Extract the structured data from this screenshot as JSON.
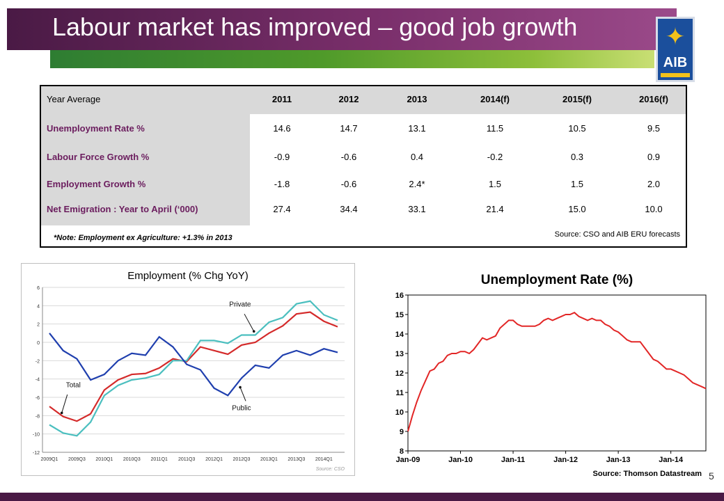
{
  "slide": {
    "title": "Labour market has improved – good job growth",
    "logo_text": "AIB",
    "page_number": "5"
  },
  "table": {
    "header_label": "Year Average",
    "years": [
      "2011",
      "2012",
      "2013",
      "2014(f)",
      "2015(f)",
      "2016(f)"
    ],
    "rows": [
      {
        "label": "Unemployment Rate %",
        "values": [
          "14.6",
          "14.7",
          "13.1",
          "11.5",
          "10.5",
          "9.5"
        ]
      },
      {
        "label": "Labour Force Growth %",
        "values": [
          "-0.9",
          "-0.6",
          "0.4",
          "-0.2",
          "0.3",
          "0.9"
        ]
      },
      {
        "label": "Employment Growth %",
        "values": [
          "-1.8",
          "-0.6",
          "2.4*",
          "1.5",
          "1.5",
          "2.0"
        ]
      },
      {
        "label": "Net Emigration : Year to April (‘000)",
        "values": [
          "27.4",
          "34.4",
          "33.1",
          "21.4",
          "15.0",
          "10.0"
        ]
      }
    ],
    "note": "*Note: Employment ex Agriculture: +1.3% in 2013",
    "source": "Source: CSO and AIB ERU forecasts"
  },
  "chart_data": [
    {
      "type": "line",
      "title": "Employment (% Chg YoY)",
      "x": [
        "2009Q1",
        "2009Q2",
        "2009Q3",
        "2009Q4",
        "2010Q1",
        "2010Q2",
        "2010Q3",
        "2010Q4",
        "2011Q1",
        "2011Q2",
        "2011Q3",
        "2011Q4",
        "2012Q1",
        "2012Q2",
        "2012Q3",
        "2012Q4",
        "2013Q1",
        "2013Q2",
        "2013Q3",
        "2013Q4",
        "2014Q1",
        "2014Q2"
      ],
      "x_tick_labels": [
        "2009Q1",
        "2009Q3",
        "2010Q1",
        "2010Q3",
        "2011Q1",
        "2011Q3",
        "2012Q1",
        "2012Q3",
        "2013Q1",
        "2013Q3",
        "2014Q1"
      ],
      "ylim": [
        -12,
        6
      ],
      "y_ticks": [
        "6",
        "4",
        "2",
        "0",
        "-2",
        "-4",
        "-6",
        "-8",
        "-10",
        "-12"
      ],
      "grid": true,
      "series": [
        {
          "name": "Total",
          "color": "#d42a2a",
          "values": [
            -7.0,
            -8.1,
            -8.6,
            -7.8,
            -5.2,
            -4.1,
            -3.5,
            -3.4,
            -2.8,
            -1.8,
            -2.1,
            -0.5,
            -0.9,
            -1.3,
            -0.3,
            0.0,
            1.0,
            1.8,
            3.1,
            3.3,
            2.3,
            1.7
          ]
        },
        {
          "name": "Private",
          "color": "#4bbfbf",
          "values": [
            -9.0,
            -9.9,
            -10.2,
            -8.7,
            -5.8,
            -4.7,
            -4.1,
            -3.9,
            -3.5,
            -2.0,
            -2.0,
            0.2,
            0.2,
            -0.1,
            0.8,
            0.8,
            2.2,
            2.7,
            4.2,
            4.5,
            3.0,
            2.4
          ]
        },
        {
          "name": "Public",
          "color": "#1f3fae",
          "values": [
            1.0,
            -0.9,
            -1.8,
            -4.1,
            -3.5,
            -2.0,
            -1.2,
            -1.4,
            0.6,
            -0.5,
            -2.4,
            -3.0,
            -5.0,
            -5.8,
            -3.9,
            -2.5,
            -2.8,
            -1.4,
            -0.9,
            -1.4,
            -0.7,
            -1.1
          ]
        }
      ],
      "annotations": [
        "Private",
        "Total",
        "Public"
      ],
      "source": "Source: CSO"
    },
    {
      "type": "line",
      "title": "Unemployment Rate (%)",
      "x_tick_labels": [
        "Jan-09",
        "Jan-10",
        "Jan-11",
        "Jan-12",
        "Jan-13",
        "Jan-14"
      ],
      "ylim": [
        8,
        16
      ],
      "y_ticks": [
        "16",
        "15",
        "14",
        "13",
        "12",
        "11",
        "10",
        "9",
        "8"
      ],
      "grid": false,
      "series": [
        {
          "name": "",
          "color": "#e22626",
          "x_start": "2009-01",
          "frequency": "monthly",
          "values": [
            9.0,
            9.8,
            10.5,
            11.1,
            11.6,
            12.1,
            12.2,
            12.5,
            12.6,
            12.9,
            13.0,
            13.0,
            13.1,
            13.1,
            13.0,
            13.2,
            13.5,
            13.8,
            13.7,
            13.8,
            13.9,
            14.3,
            14.5,
            14.7,
            14.7,
            14.5,
            14.4,
            14.4,
            14.4,
            14.4,
            14.5,
            14.7,
            14.8,
            14.7,
            14.8,
            14.9,
            15.0,
            15.0,
            15.1,
            14.9,
            14.8,
            14.7,
            14.8,
            14.7,
            14.7,
            14.5,
            14.4,
            14.2,
            14.1,
            13.9,
            13.7,
            13.6,
            13.6,
            13.6,
            13.3,
            13.0,
            12.7,
            12.6,
            12.4,
            12.2,
            12.2,
            12.1,
            12.0,
            11.9,
            11.7,
            11.5,
            11.4,
            11.3,
            11.2
          ]
        }
      ],
      "source": "Source: Thomson Datastream"
    }
  ]
}
